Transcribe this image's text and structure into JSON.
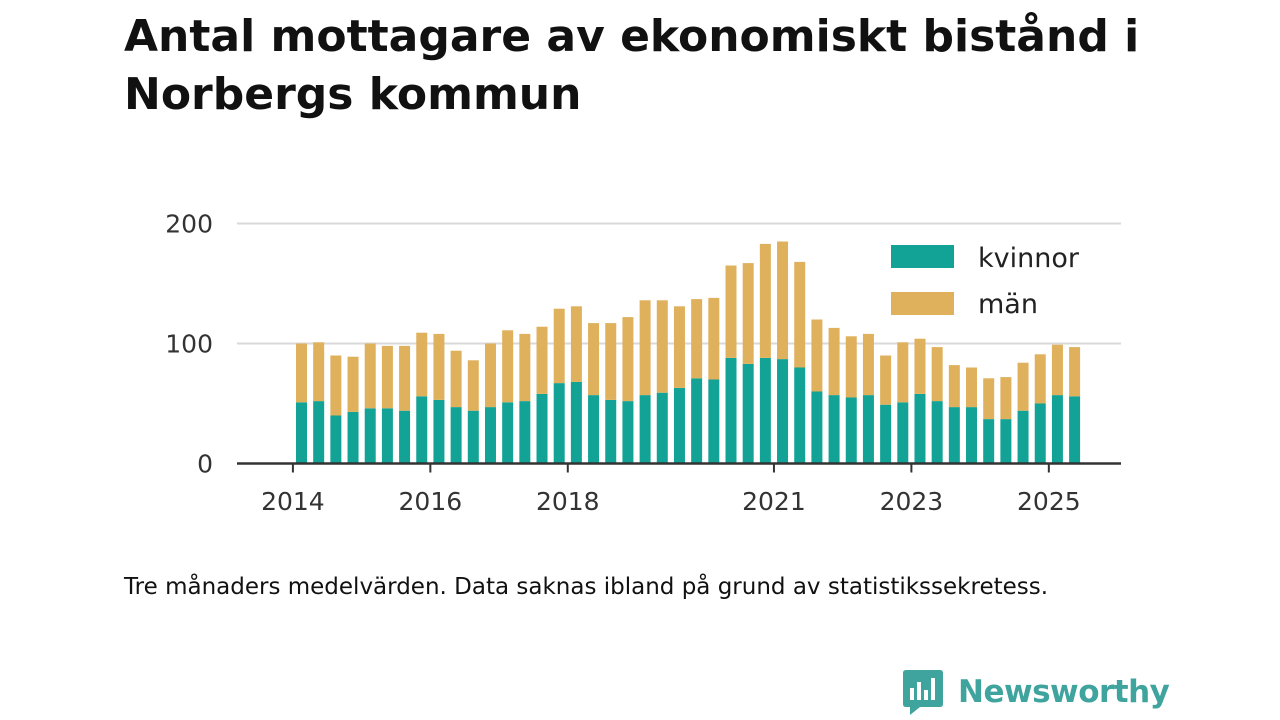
{
  "title": "Antal mottagare av ekonomiskt bistånd i Norbergs kommun",
  "caption": "Tre månaders medelvärden. Data saknas ibland på grund av statistikssekretess.",
  "brand": {
    "name": "Newsworthy",
    "color": "#3fa39e"
  },
  "colors": {
    "kvinnor": "#12a396",
    "man": "#dfb15c",
    "grid": "#d9d9d9",
    "axis": "#333333"
  },
  "chart_data": {
    "type": "bar",
    "stacked": true,
    "title": "Antal mottagare av ekonomiskt bistånd i Norbergs kommun",
    "xlabel": "",
    "ylabel": "",
    "ylim": [
      0,
      200
    ],
    "yticks": [
      0,
      100,
      200
    ],
    "grid": true,
    "legend_position": "top-right",
    "xtick_labels": [
      {
        "label": "2014",
        "pos": -0.5
      },
      {
        "label": "2016",
        "pos": 7.5
      },
      {
        "label": "2018",
        "pos": 15.5
      },
      {
        "label": "2021",
        "pos": 27.5
      },
      {
        "label": "2023",
        "pos": 35.5
      },
      {
        "label": "2025",
        "pos": 43.5
      }
    ],
    "series": [
      {
        "name": "kvinnor",
        "values": [
          51,
          52,
          40,
          43,
          46,
          46,
          44,
          56,
          53,
          47,
          44,
          47,
          51,
          52,
          58,
          67,
          68,
          57,
          53,
          52,
          57,
          59,
          63,
          71,
          70,
          88,
          83,
          88,
          87,
          80,
          60,
          57,
          55,
          57,
          49,
          51,
          58,
          52,
          47,
          47,
          37,
          37,
          44,
          50,
          57,
          56
        ]
      },
      {
        "name": "män",
        "values": [
          49,
          49,
          50,
          46,
          54,
          52,
          54,
          53,
          55,
          47,
          42,
          53,
          60,
          56,
          56,
          62,
          63,
          60,
          64,
          70,
          79,
          77,
          68,
          66,
          68,
          77,
          84,
          95,
          98,
          88,
          60,
          56,
          51,
          51,
          41,
          50,
          46,
          45,
          35,
          33,
          34,
          35,
          40,
          41,
          42,
          41
        ]
      }
    ]
  }
}
